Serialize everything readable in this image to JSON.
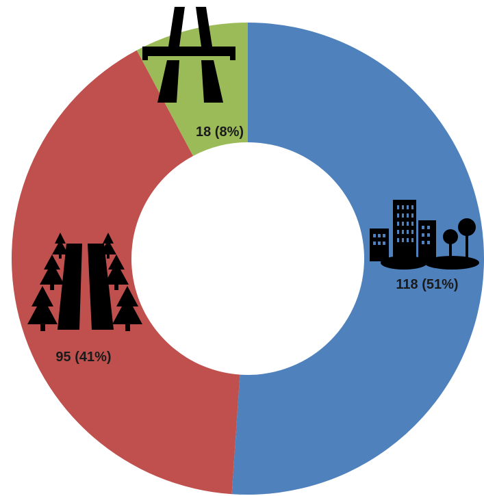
{
  "chart_data": {
    "type": "pie",
    "variant": "donut",
    "start": "top",
    "direction": "clockwise",
    "title": "",
    "slices": [
      {
        "value": 118,
        "percent": 51,
        "label_text": "118 (51%)",
        "color": "#4f81bd",
        "icon": "city-buildings-icon"
      },
      {
        "value": 95,
        "percent": 41,
        "label_text": "95 (41%)",
        "color": "#c0504d",
        "icon": "forest-road-icon"
      },
      {
        "value": 18,
        "percent": 8,
        "label_text": "18 (8%)",
        "color": "#9bbb59",
        "icon": "highway-icon"
      }
    ]
  }
}
